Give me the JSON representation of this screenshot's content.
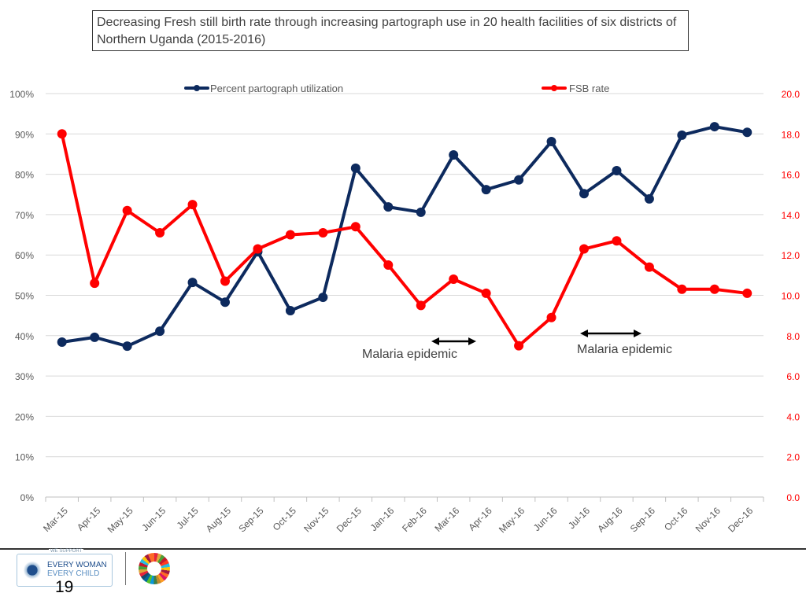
{
  "title": "Decreasing Fresh still birth rate through increasing partograph use in 20 health facilities of six districts of Northern Uganda (2015-2016)",
  "page_number": "19",
  "logo": {
    "we_support": "WE SUPPORT",
    "line1": "EVERY WOMAN",
    "line2": "EVERY CHILD"
  },
  "chart_data": {
    "type": "line",
    "title": "Decreasing Fresh still birth rate through increasing partograph use in 20 health facilities of six districts of Northern Uganda (2015-2016)",
    "categories": [
      "Mar-15",
      "Apr-15",
      "May-15",
      "Jun-15",
      "Jul-15",
      "Aug-15",
      "Sep-15",
      "Oct-15",
      "Nov-15",
      "Dec-15",
      "Jan-16",
      "Feb-16",
      "Mar-16",
      "Apr-16",
      "May-16",
      "Jun-16",
      "Jul-16",
      "Aug-16",
      "Sep-16",
      "Oct-16",
      "Nov-16",
      "Dec-16"
    ],
    "y_left": {
      "ylim": [
        0,
        100
      ],
      "ticks": [
        "0%",
        "10%",
        "20%",
        "30%",
        "40%",
        "50%",
        "60%",
        "70%",
        "80%",
        "90%",
        "100%"
      ]
    },
    "y_right": {
      "ylim": [
        0,
        20
      ],
      "ticks": [
        "0.0",
        "2.0",
        "4.0",
        "6.0",
        "8.0",
        "10.0",
        "12.0",
        "14.0",
        "16.0",
        "18.0",
        "20.0"
      ]
    },
    "grid": true,
    "legend": "top",
    "series": [
      {
        "name": "Percent partograph utilization",
        "axis": "left",
        "color": "#0d2a5e",
        "values": [
          38.4,
          39.6,
          37.4,
          41.1,
          53.2,
          48.3,
          60.8,
          46.2,
          49.5,
          81.5,
          71.9,
          70.6,
          84.8,
          76.2,
          78.6,
          88.1,
          75.2,
          80.9,
          73.9,
          89.7,
          91.8,
          90.4
        ]
      },
      {
        "name": "FSB rate",
        "axis": "right",
        "color": "#ff0000",
        "values": [
          18.0,
          10.6,
          14.2,
          13.1,
          14.5,
          10.7,
          12.3,
          13.0,
          13.1,
          13.4,
          11.5,
          9.5,
          10.8,
          10.1,
          7.5,
          8.9,
          12.3,
          12.7,
          11.4,
          10.3,
          10.3,
          10.1
        ]
      }
    ],
    "annotations": [
      {
        "text": "Malaria epidemic",
        "from": "Mar-16",
        "to": "Apr-16"
      },
      {
        "text": "Malaria epidemic",
        "from": "Jul-16",
        "to": "Aug-16"
      }
    ]
  }
}
